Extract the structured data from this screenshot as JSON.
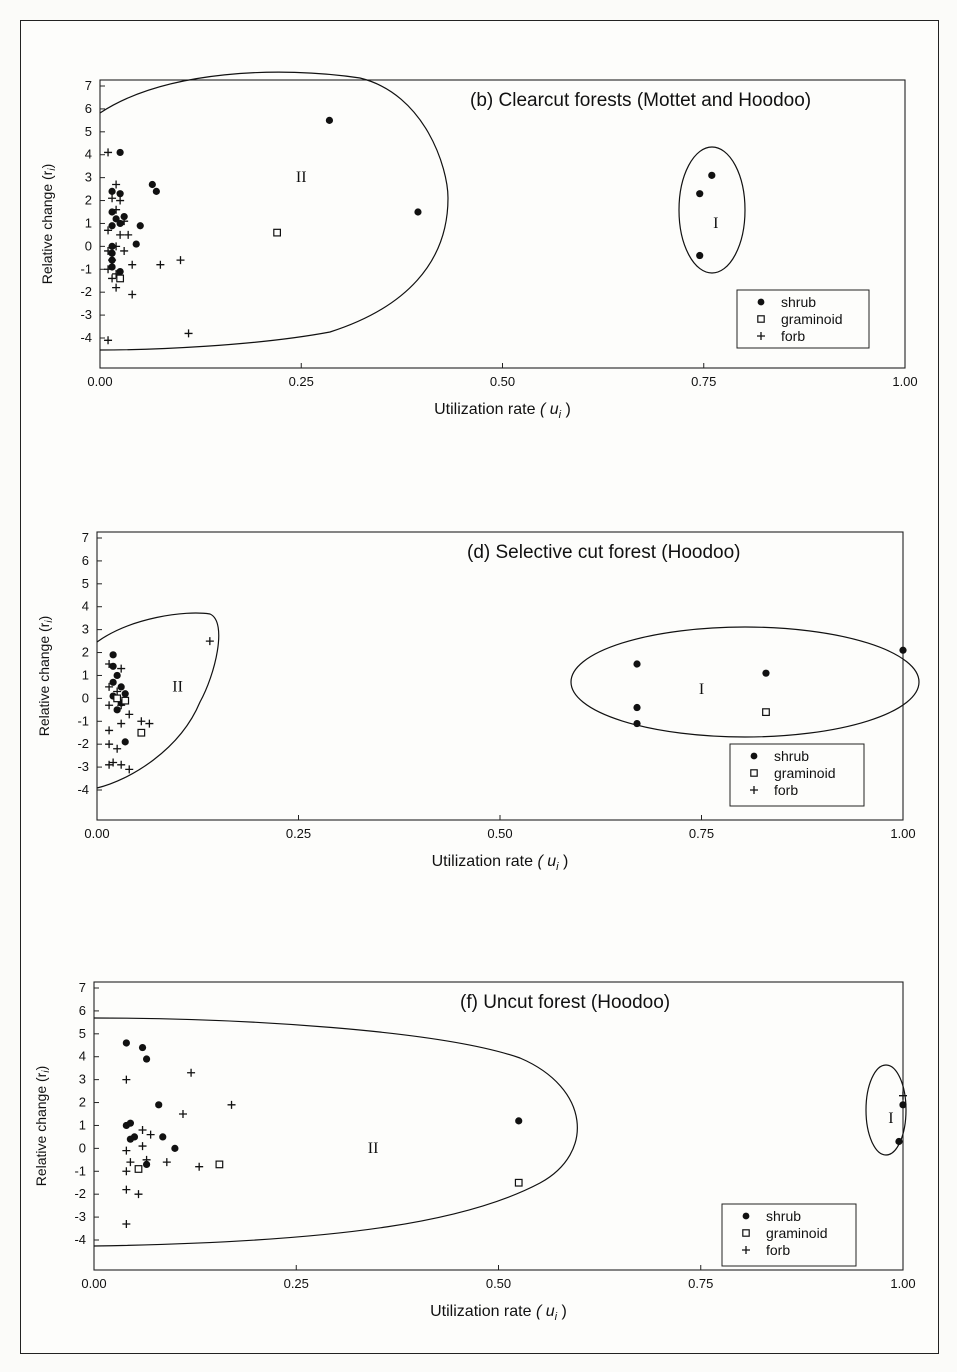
{
  "chart_data": [
    {
      "type": "scatter",
      "title": "(b)  Clearcut forests (Mottet and Hoodoo)",
      "xlabel_main": "Utilization rate",
      "xlabel_symbol": "( u",
      "xlabel_sub": "i",
      "xlabel_close": " )",
      "ylabel": "Relative change (r",
      "ylabel_sub": "i",
      "ylabel_close": ")",
      "xlim": [
        0,
        1
      ],
      "ylim": [
        -4.6,
        7
      ],
      "xticks": [
        "0.00",
        "0.25",
        "0.50",
        "0.75",
        "1.00"
      ],
      "yticks": [
        "7",
        "6",
        "5",
        "4",
        "3",
        "2",
        "1",
        "0",
        "-1",
        "-2",
        "-3",
        "-4"
      ],
      "legend": [
        "shrub",
        "graminoid",
        "forb"
      ],
      "groups": [
        {
          "label": "II",
          "label_x": 0.25,
          "label_y": 2.8
        },
        {
          "label": "I",
          "label_x": 0.765,
          "label_y": 0.8
        }
      ],
      "series": [
        {
          "name": "shrub",
          "points": [
            [
              0.025,
              4.1
            ],
            [
              0.285,
              5.5
            ],
            [
              0.395,
              1.5
            ],
            [
              0.065,
              2.7
            ],
            [
              0.07,
              2.4
            ],
            [
              0.015,
              2.4
            ],
            [
              0.025,
              2.3
            ],
            [
              0.015,
              1.5
            ],
            [
              0.02,
              1.2
            ],
            [
              0.025,
              1.0
            ],
            [
              0.03,
              1.3
            ],
            [
              0.015,
              0.9
            ],
            [
              0.05,
              0.9
            ],
            [
              0.045,
              0.1
            ],
            [
              0.015,
              0.0
            ],
            [
              0.015,
              -0.3
            ],
            [
              0.015,
              -0.6
            ],
            [
              0.015,
              -0.9
            ],
            [
              0.025,
              -1.1
            ],
            [
              0.745,
              2.3
            ],
            [
              0.76,
              3.1
            ],
            [
              0.745,
              -0.4
            ]
          ]
        },
        {
          "name": "graminoid",
          "points": [
            [
              0.22,
              0.6
            ],
            [
              0.025,
              -1.4
            ]
          ]
        },
        {
          "name": "forb",
          "points": [
            [
              0.01,
              4.1
            ],
            [
              0.02,
              2.7
            ],
            [
              0.015,
              2.1
            ],
            [
              0.025,
              2.0
            ],
            [
              0.02,
              1.6
            ],
            [
              0.03,
              1.1
            ],
            [
              0.01,
              0.7
            ],
            [
              0.025,
              0.5
            ],
            [
              0.035,
              0.5
            ],
            [
              0.02,
              0.0
            ],
            [
              0.01,
              -0.2
            ],
            [
              0.03,
              -0.2
            ],
            [
              0.04,
              -0.8
            ],
            [
              0.075,
              -0.8
            ],
            [
              0.1,
              -0.6
            ],
            [
              0.01,
              -1.0
            ],
            [
              0.02,
              -1.2
            ],
            [
              0.02,
              -1.8
            ],
            [
              0.04,
              -2.1
            ],
            [
              0.11,
              -3.8
            ],
            [
              0.01,
              -4.1
            ],
            [
              0.015,
              -0.6
            ],
            [
              0.015,
              -1.4
            ]
          ]
        }
      ]
    },
    {
      "type": "scatter",
      "title": "(d)  Selective cut forest (Hoodoo)",
      "xlabel_main": "Utilization rate",
      "xlabel_symbol": "( u",
      "xlabel_sub": "i",
      "xlabel_close": " )",
      "ylabel": "Relative change (r",
      "ylabel_sub": "i",
      "ylabel_close": ")",
      "xlim": [
        0,
        1
      ],
      "ylim": [
        -4.6,
        7
      ],
      "xticks": [
        "0.00",
        "0.25",
        "0.50",
        "0.75",
        "1.00"
      ],
      "yticks": [
        "7",
        "6",
        "5",
        "4",
        "3",
        "2",
        "1",
        "0",
        "-1",
        "-2",
        "-3",
        "-4"
      ],
      "legend": [
        "shrub",
        "graminoid",
        "forb"
      ],
      "groups": [
        {
          "label": "II",
          "label_x": 0.1,
          "label_y": 0.3
        },
        {
          "label": "I",
          "label_x": 0.75,
          "label_y": 0.2
        }
      ],
      "series": [
        {
          "name": "shrub",
          "points": [
            [
              0.02,
              1.9
            ],
            [
              0.02,
              1.4
            ],
            [
              0.025,
              1.0
            ],
            [
              0.02,
              0.7
            ],
            [
              0.03,
              0.5
            ],
            [
              0.035,
              0.2
            ],
            [
              0.02,
              0.1
            ],
            [
              0.03,
              -0.2
            ],
            [
              0.025,
              -0.5
            ],
            [
              0.035,
              -1.9
            ],
            [
              0.67,
              1.5
            ],
            [
              0.67,
              -0.4
            ],
            [
              0.67,
              -1.1
            ],
            [
              0.83,
              1.1
            ],
            [
              1.0,
              2.1
            ]
          ]
        },
        {
          "name": "graminoid",
          "points": [
            [
              0.025,
              0.0
            ],
            [
              0.035,
              -0.1
            ],
            [
              0.055,
              -1.5
            ],
            [
              0.83,
              -0.6
            ]
          ]
        },
        {
          "name": "forb",
          "points": [
            [
              0.14,
              2.5
            ],
            [
              0.015,
              1.5
            ],
            [
              0.03,
              1.3
            ],
            [
              0.015,
              0.5
            ],
            [
              0.025,
              0.3
            ],
            [
              0.015,
              -0.3
            ],
            [
              0.03,
              -0.3
            ],
            [
              0.04,
              -0.7
            ],
            [
              0.055,
              -1.0
            ],
            [
              0.065,
              -1.1
            ],
            [
              0.015,
              -1.4
            ],
            [
              0.03,
              -1.1
            ],
            [
              0.015,
              -2.0
            ],
            [
              0.02,
              -2.8
            ],
            [
              0.015,
              -2.9
            ],
            [
              0.03,
              -2.9
            ],
            [
              0.04,
              -3.1
            ],
            [
              0.025,
              -2.2
            ]
          ]
        }
      ]
    },
    {
      "type": "scatter",
      "title": "(f)  Uncut forest (Hoodoo)",
      "xlabel_main": "Utilization rate",
      "xlabel_symbol": "( u",
      "xlabel_sub": "i",
      "xlabel_close": " )",
      "ylabel": "Relative change (r",
      "ylabel_sub": "i",
      "ylabel_close": ")",
      "xlim": [
        0,
        1
      ],
      "ylim": [
        -4.6,
        7
      ],
      "xticks": [
        "0.00",
        "0.25",
        "0.50",
        "0.75",
        "1.00"
      ],
      "yticks": [
        "7",
        "6",
        "5",
        "4",
        "3",
        "2",
        "1",
        "0",
        "-1",
        "-2",
        "-3",
        "-4"
      ],
      "legend": [
        "shrub",
        "graminoid",
        "forb"
      ],
      "groups": [
        {
          "label": "II",
          "label_x": 0.345,
          "label_y": -0.2
        },
        {
          "label": "I",
          "label_x": 0.985,
          "label_y": 1.1
        }
      ],
      "series": [
        {
          "name": "shrub",
          "points": [
            [
              0.04,
              4.6
            ],
            [
              0.06,
              4.4
            ],
            [
              0.065,
              3.9
            ],
            [
              0.08,
              1.9
            ],
            [
              0.04,
              1.0
            ],
            [
              0.045,
              1.1
            ],
            [
              0.05,
              0.5
            ],
            [
              0.045,
              0.4
            ],
            [
              0.085,
              0.5
            ],
            [
              0.1,
              0.0
            ],
            [
              0.065,
              -0.7
            ],
            [
              0.525,
              1.2
            ],
            [
              1.0,
              1.9
            ],
            [
              0.995,
              0.3
            ]
          ]
        },
        {
          "name": "graminoid",
          "points": [
            [
              0.155,
              -0.7
            ],
            [
              0.055,
              -0.9
            ],
            [
              0.525,
              -1.5
            ]
          ]
        },
        {
          "name": "forb",
          "points": [
            [
              0.04,
              3.0
            ],
            [
              0.12,
              3.3
            ],
            [
              0.17,
              1.9
            ],
            [
              0.11,
              1.5
            ],
            [
              1.0,
              2.3
            ],
            [
              0.06,
              0.8
            ],
            [
              0.07,
              0.6
            ],
            [
              0.06,
              0.1
            ],
            [
              0.04,
              -0.1
            ],
            [
              0.045,
              -0.6
            ],
            [
              0.065,
              -0.5
            ],
            [
              0.04,
              -1.0
            ],
            [
              0.09,
              -0.6
            ],
            [
              0.13,
              -0.8
            ],
            [
              0.04,
              -1.8
            ],
            [
              0.055,
              -2.0
            ],
            [
              0.04,
              -3.3
            ]
          ]
        }
      ]
    }
  ]
}
